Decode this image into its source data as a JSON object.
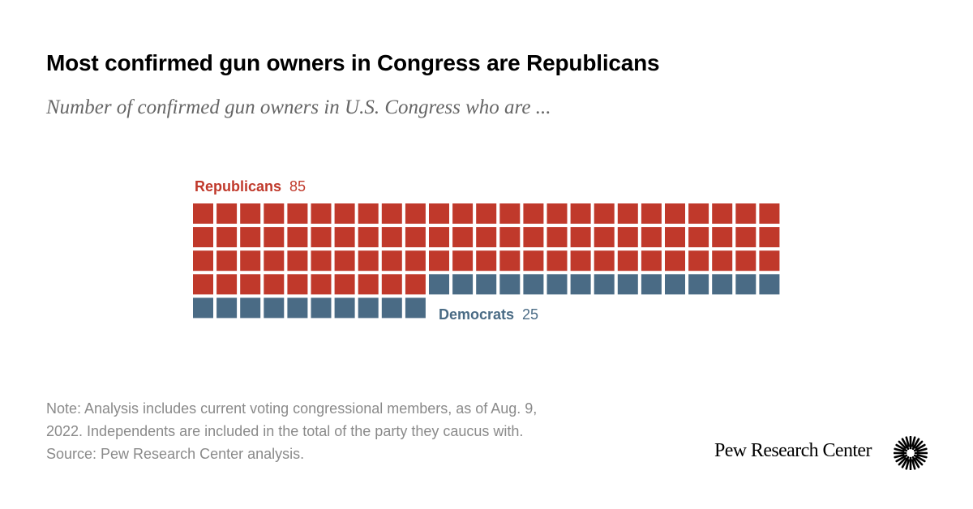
{
  "title": "Most confirmed gun owners in Congress are Republicans",
  "subtitle": "Number of confirmed gun owners in U.S. Congress who are ...",
  "chart_data": {
    "type": "waffle",
    "units_per_row": 25,
    "series": [
      {
        "name": "Republicans",
        "value": 85,
        "color": "#c0392b"
      },
      {
        "name": "Democrats",
        "value": 25,
        "color": "#4a6b85"
      }
    ]
  },
  "note": {
    "lines": [
      "Note: Analysis includes current voting congressional members, as of Aug. 9,",
      "2022. Independents are included in the total of the party they caucus with.",
      "Source: Pew Research Center analysis."
    ]
  },
  "brand": {
    "name": "Pew Research Center",
    "logo_icon": "sunburst-icon"
  }
}
